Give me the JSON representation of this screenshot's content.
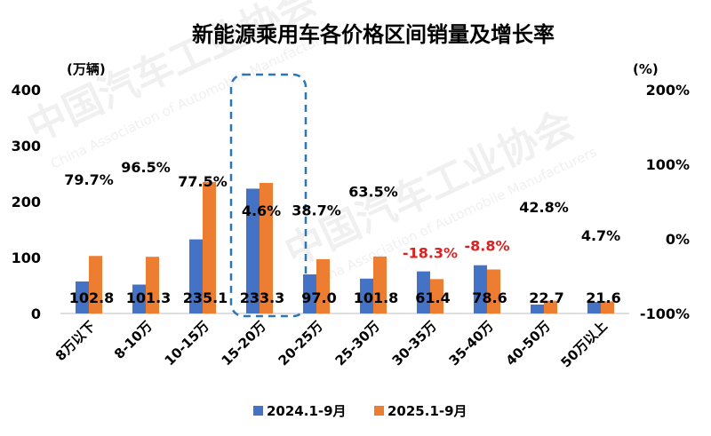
{
  "chart_data": {
    "type": "bar",
    "title": "新能源乘用车各价格区间销量及增长率",
    "left_axis_unit": "(万辆)",
    "right_axis_unit": "(%)",
    "left_ylim": [
      0,
      400
    ],
    "left_ticks": [
      "0",
      "100",
      "200",
      "300",
      "400"
    ],
    "right_ylim": [
      -100,
      200
    ],
    "right_ticks": [
      "-100%",
      "0%",
      "100%",
      "200%"
    ],
    "categories": [
      "8万以下",
      "8-10万",
      "10-15万",
      "15-20万",
      "20-25万",
      "25-30万",
      "30-35万",
      "35-40万",
      "40-50万",
      "50万以上"
    ],
    "series": [
      {
        "name": "2024.1-9月",
        "color": "#4472C4",
        "values": [
          57.2,
          51.6,
          132.4,
          223.1,
          69.9,
          62.3,
          75.2,
          86.2,
          15.9,
          20.6
        ]
      },
      {
        "name": "2025.1-9月",
        "color": "#ED7D31",
        "values": [
          102.8,
          101.3,
          235.1,
          233.3,
          97.0,
          101.8,
          61.4,
          78.6,
          22.7,
          21.6
        ]
      }
    ],
    "value_labels": [
      "102.8",
      "101.3",
      "235.1",
      "233.3",
      "97.0",
      "101.8",
      "61.4",
      "78.6",
      "22.7",
      "21.6"
    ],
    "growth_rates": [
      "79.7%",
      "96.5%",
      "77.5%",
      "4.6%",
      "38.7%",
      "63.5%",
      "-18.3%",
      "-8.8%",
      "42.8%",
      "4.7%"
    ],
    "negative_color": "#E02020",
    "highlight_category": "15-20万",
    "highlight_color": "#2E75B6",
    "legend_position": "bottom",
    "grid": false,
    "watermark_text": [
      "中国汽车工业协会",
      "China Association of Automobile Manufacturers"
    ]
  }
}
